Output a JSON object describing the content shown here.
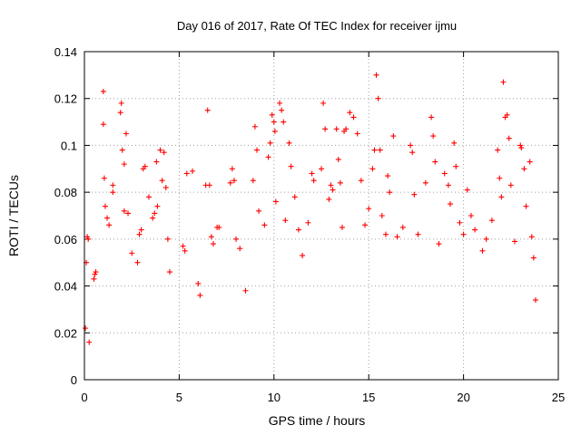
{
  "chart_data": {
    "type": "scatter",
    "title": "Day 016 of 2017, Rate Of TEC Index for receiver ijmu",
    "xlabel": "GPS time / hours",
    "ylabel": "ROTI / TECUs",
    "xlim": [
      0,
      25
    ],
    "ylim": [
      0,
      0.14
    ],
    "xticks": [
      0,
      5,
      10,
      15,
      20,
      25
    ],
    "xtick_labels": [
      "0",
      "5",
      "10",
      "15",
      "20",
      "25"
    ],
    "yticks": [
      0,
      0.02,
      0.04,
      0.06,
      0.08,
      0.1,
      0.12,
      0.14
    ],
    "ytick_labels": [
      "0",
      "0.02",
      "0.04",
      "0.06",
      "0.08",
      "0.1",
      "0.12",
      "0.14"
    ],
    "grid": true,
    "marker": "plus",
    "color": "#ff0000",
    "series": [
      {
        "name": "ROTI",
        "points": [
          [
            0.05,
            0.022
          ],
          [
            0.1,
            0.05
          ],
          [
            0.15,
            0.061
          ],
          [
            0.2,
            0.06
          ],
          [
            0.25,
            0.016
          ],
          [
            0.5,
            0.043
          ],
          [
            0.55,
            0.045
          ],
          [
            0.6,
            0.046
          ],
          [
            1.0,
            0.123
          ],
          [
            1.0,
            0.109
          ],
          [
            1.05,
            0.086
          ],
          [
            1.1,
            0.074
          ],
          [
            1.2,
            0.069
          ],
          [
            1.3,
            0.066
          ],
          [
            1.5,
            0.08
          ],
          [
            1.5,
            0.083
          ],
          [
            1.9,
            0.114
          ],
          [
            1.95,
            0.118
          ],
          [
            2.0,
            0.098
          ],
          [
            2.1,
            0.092
          ],
          [
            2.1,
            0.072
          ],
          [
            2.2,
            0.105
          ],
          [
            2.3,
            0.071
          ],
          [
            2.5,
            0.054
          ],
          [
            2.8,
            0.05
          ],
          [
            2.9,
            0.062
          ],
          [
            3.0,
            0.064
          ],
          [
            3.1,
            0.09
          ],
          [
            3.2,
            0.091
          ],
          [
            3.4,
            0.078
          ],
          [
            3.6,
            0.069
          ],
          [
            3.7,
            0.071
          ],
          [
            3.8,
            0.093
          ],
          [
            3.85,
            0.074
          ],
          [
            4.0,
            0.098
          ],
          [
            4.1,
            0.085
          ],
          [
            4.2,
            0.097
          ],
          [
            4.3,
            0.082
          ],
          [
            4.4,
            0.06
          ],
          [
            4.5,
            0.046
          ],
          [
            5.2,
            0.057
          ],
          [
            5.3,
            0.055
          ],
          [
            5.4,
            0.088
          ],
          [
            5.7,
            0.089
          ],
          [
            6.0,
            0.041
          ],
          [
            6.1,
            0.036
          ],
          [
            6.4,
            0.083
          ],
          [
            6.5,
            0.115
          ],
          [
            6.6,
            0.083
          ],
          [
            6.7,
            0.061
          ],
          [
            6.8,
            0.058
          ],
          [
            7.0,
            0.065
          ],
          [
            7.1,
            0.065
          ],
          [
            7.7,
            0.084
          ],
          [
            7.8,
            0.09
          ],
          [
            7.9,
            0.085
          ],
          [
            8.0,
            0.06
          ],
          [
            8.2,
            0.056
          ],
          [
            8.5,
            0.038
          ],
          [
            8.9,
            0.085
          ],
          [
            9.0,
            0.108
          ],
          [
            9.1,
            0.098
          ],
          [
            9.2,
            0.072
          ],
          [
            9.5,
            0.066
          ],
          [
            9.7,
            0.095
          ],
          [
            9.8,
            0.101
          ],
          [
            9.9,
            0.113
          ],
          [
            10.0,
            0.11
          ],
          [
            10.05,
            0.106
          ],
          [
            10.1,
            0.076
          ],
          [
            10.3,
            0.118
          ],
          [
            10.4,
            0.115
          ],
          [
            10.5,
            0.11
          ],
          [
            10.6,
            0.068
          ],
          [
            10.8,
            0.101
          ],
          [
            10.9,
            0.091
          ],
          [
            11.1,
            0.078
          ],
          [
            11.3,
            0.064
          ],
          [
            11.5,
            0.053
          ],
          [
            11.8,
            0.067
          ],
          [
            12.0,
            0.088
          ],
          [
            12.1,
            0.085
          ],
          [
            12.5,
            0.09
          ],
          [
            12.6,
            0.118
          ],
          [
            12.7,
            0.107
          ],
          [
            12.9,
            0.077
          ],
          [
            13.0,
            0.083
          ],
          [
            13.1,
            0.081
          ],
          [
            13.3,
            0.107
          ],
          [
            13.4,
            0.094
          ],
          [
            13.5,
            0.084
          ],
          [
            13.6,
            0.065
          ],
          [
            13.7,
            0.106
          ],
          [
            13.8,
            0.107
          ],
          [
            14.0,
            0.114
          ],
          [
            14.2,
            0.112
          ],
          [
            14.4,
            0.105
          ],
          [
            14.6,
            0.085
          ],
          [
            14.8,
            0.066
          ],
          [
            15.0,
            0.073
          ],
          [
            15.2,
            0.09
          ],
          [
            15.3,
            0.098
          ],
          [
            15.4,
            0.13
          ],
          [
            15.5,
            0.12
          ],
          [
            15.6,
            0.098
          ],
          [
            15.7,
            0.07
          ],
          [
            15.9,
            0.062
          ],
          [
            16.0,
            0.087
          ],
          [
            16.1,
            0.08
          ],
          [
            16.3,
            0.104
          ],
          [
            16.5,
            0.061
          ],
          [
            16.8,
            0.065
          ],
          [
            17.2,
            0.1
          ],
          [
            17.3,
            0.097
          ],
          [
            17.4,
            0.079
          ],
          [
            17.6,
            0.062
          ],
          [
            18.0,
            0.084
          ],
          [
            18.3,
            0.112
          ],
          [
            18.4,
            0.104
          ],
          [
            18.5,
            0.093
          ],
          [
            18.7,
            0.058
          ],
          [
            19.0,
            0.088
          ],
          [
            19.2,
            0.083
          ],
          [
            19.3,
            0.075
          ],
          [
            19.5,
            0.101
          ],
          [
            19.6,
            0.091
          ],
          [
            19.8,
            0.067
          ],
          [
            20.0,
            0.062
          ],
          [
            20.2,
            0.081
          ],
          [
            20.4,
            0.07
          ],
          [
            20.6,
            0.064
          ],
          [
            21.0,
            0.055
          ],
          [
            21.2,
            0.06
          ],
          [
            21.5,
            0.068
          ],
          [
            21.8,
            0.098
          ],
          [
            21.9,
            0.086
          ],
          [
            22.0,
            0.078
          ],
          [
            22.1,
            0.127
          ],
          [
            22.2,
            0.112
          ],
          [
            22.3,
            0.113
          ],
          [
            22.4,
            0.103
          ],
          [
            22.5,
            0.083
          ],
          [
            22.7,
            0.059
          ],
          [
            23.0,
            0.1
          ],
          [
            23.05,
            0.099
          ],
          [
            23.2,
            0.09
          ],
          [
            23.3,
            0.074
          ],
          [
            23.5,
            0.093
          ],
          [
            23.6,
            0.061
          ],
          [
            23.7,
            0.052
          ],
          [
            23.8,
            0.034
          ]
        ]
      }
    ]
  }
}
